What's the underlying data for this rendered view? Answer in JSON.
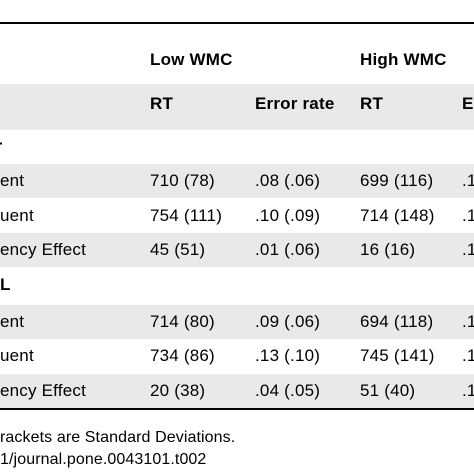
{
  "table": {
    "group_headers": [
      "Low WMC",
      "High WMC"
    ],
    "sub_headers": [
      "RT",
      "Error rate",
      "RT",
      "E"
    ],
    "sections": [
      {
        "label": "-",
        "rows": [
          {
            "label": "ent",
            "cells": [
              "710 (78)",
              ".08 (.06)",
              "699 (116)",
              ".1"
            ]
          },
          {
            "label": "uent",
            "cells": [
              "754 (111)",
              ".10 (.09)",
              "714 (148)",
              ".1"
            ]
          },
          {
            "label": "ency Effect",
            "cells": [
              "45 (51)",
              ".01 (.06)",
              "16 (16)",
              ".1"
            ]
          }
        ]
      },
      {
        "label": "L",
        "rows": [
          {
            "label": "ent",
            "cells": [
              "714 (80)",
              ".09 (.06)",
              "694 (118)",
              ".1"
            ]
          },
          {
            "label": "uent",
            "cells": [
              "734 (86)",
              ".13 (.10)",
              "745 (141)",
              ".1"
            ]
          },
          {
            "label": "ency Effect",
            "cells": [
              "20 (38)",
              ".04 (.05)",
              "51 (40)",
              ".1"
            ]
          }
        ]
      }
    ]
  },
  "footnotes": [
    "rackets are Standard Deviations.",
    "1/journal.pone.0043101.t002"
  ]
}
